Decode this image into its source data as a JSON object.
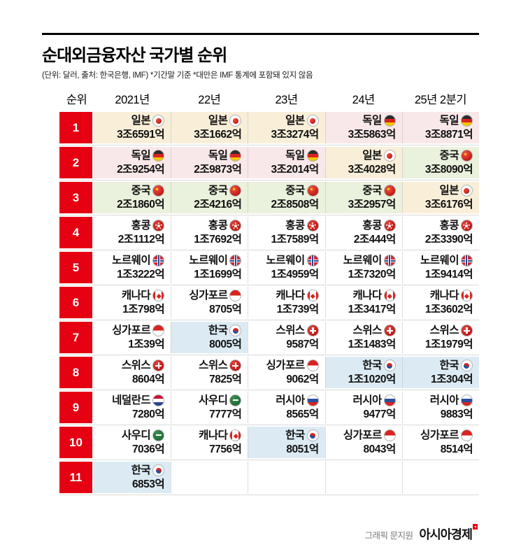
{
  "title": "순대외금융자산 국가별 순위",
  "subtitle": "(단위: 달러, 출처: 한국은행, IMF)  *기간말 기준  *대만은 IMF 통계에 포함돼 있지 않음",
  "footer": {
    "credit": "그래픽 문지원",
    "brand": "아시아경제"
  },
  "colors": {
    "rank_bg": "#e50012",
    "hl_jp": "#f9efd9",
    "hl_de": "#f9e8e9",
    "hl_cn": "#eaf1dc",
    "hl_kr": "#dcebf3"
  },
  "chart_data": {
    "type": "table",
    "title": "순대외금융자산 국가별 순위",
    "unit": "달러",
    "columns": [
      "순위",
      "2021년",
      "22년",
      "23년",
      "24년",
      "25년 2분기"
    ],
    "rows": [
      {
        "rank": "1",
        "cells": [
          {
            "country": "일본",
            "flag": "jp",
            "value": "3조6591억",
            "highlight": "jp"
          },
          {
            "country": "일본",
            "flag": "jp",
            "value": "3조1662억",
            "highlight": "jp"
          },
          {
            "country": "일본",
            "flag": "jp",
            "value": "3조3274억",
            "highlight": "jp"
          },
          {
            "country": "독일",
            "flag": "de",
            "value": "3조5863억",
            "highlight": "de"
          },
          {
            "country": "독일",
            "flag": "de",
            "value": "3조8871억",
            "highlight": "de"
          }
        ]
      },
      {
        "rank": "2",
        "cells": [
          {
            "country": "독일",
            "flag": "de",
            "value": "2조9254억",
            "highlight": "de"
          },
          {
            "country": "독일",
            "flag": "de",
            "value": "2조9873억",
            "highlight": "de"
          },
          {
            "country": "독일",
            "flag": "de",
            "value": "3조2014억",
            "highlight": "de"
          },
          {
            "country": "일본",
            "flag": "jp",
            "value": "3조4028억",
            "highlight": "jp"
          },
          {
            "country": "중국",
            "flag": "cn",
            "value": "3조8090억",
            "highlight": "cn"
          }
        ]
      },
      {
        "rank": "3",
        "cells": [
          {
            "country": "중국",
            "flag": "cn",
            "value": "2조1860억",
            "highlight": "cn"
          },
          {
            "country": "중국",
            "flag": "cn",
            "value": "2조4216억",
            "highlight": "cn"
          },
          {
            "country": "중국",
            "flag": "cn",
            "value": "2조8508억",
            "highlight": "cn"
          },
          {
            "country": "중국",
            "flag": "cn",
            "value": "3조2957억",
            "highlight": "cn"
          },
          {
            "country": "일본",
            "flag": "jp",
            "value": "3조6176억",
            "highlight": "jp"
          }
        ]
      },
      {
        "rank": "4",
        "cells": [
          {
            "country": "홍콩",
            "flag": "hk",
            "value": "2조1112억",
            "highlight": null
          },
          {
            "country": "홍콩",
            "flag": "hk",
            "value": "1조7692억",
            "highlight": null
          },
          {
            "country": "홍콩",
            "flag": "hk",
            "value": "1조7589억",
            "highlight": null
          },
          {
            "country": "홍콩",
            "flag": "hk",
            "value": "2조444억",
            "highlight": null
          },
          {
            "country": "홍콩",
            "flag": "hk",
            "value": "2조3390억",
            "highlight": null
          }
        ]
      },
      {
        "rank": "5",
        "cells": [
          {
            "country": "노르웨이",
            "flag": "no",
            "value": "1조3222억",
            "highlight": null
          },
          {
            "country": "노르웨이",
            "flag": "no",
            "value": "1조1699억",
            "highlight": null
          },
          {
            "country": "노르웨이",
            "flag": "no",
            "value": "1조4959억",
            "highlight": null
          },
          {
            "country": "노르웨이",
            "flag": "no",
            "value": "1조7320억",
            "highlight": null
          },
          {
            "country": "노르웨이",
            "flag": "no",
            "value": "1조9414억",
            "highlight": null
          }
        ]
      },
      {
        "rank": "6",
        "cells": [
          {
            "country": "캐나다",
            "flag": "ca",
            "value": "1조798억",
            "highlight": null
          },
          {
            "country": "싱가포르",
            "flag": "sg",
            "value": "8705억",
            "highlight": null
          },
          {
            "country": "캐나다",
            "flag": "ca",
            "value": "1조739억",
            "highlight": null
          },
          {
            "country": "캐나다",
            "flag": "ca",
            "value": "1조3417억",
            "highlight": null
          },
          {
            "country": "캐나다",
            "flag": "ca",
            "value": "1조3602억",
            "highlight": null
          }
        ]
      },
      {
        "rank": "7",
        "cells": [
          {
            "country": "싱가포르",
            "flag": "sg",
            "value": "1조39억",
            "highlight": null
          },
          {
            "country": "한국",
            "flag": "kr",
            "value": "8005억",
            "highlight": "kr"
          },
          {
            "country": "스위스",
            "flag": "ch",
            "value": "9587억",
            "highlight": null
          },
          {
            "country": "스위스",
            "flag": "ch",
            "value": "1조1483억",
            "highlight": null
          },
          {
            "country": "스위스",
            "flag": "ch",
            "value": "1조1979억",
            "highlight": null
          }
        ]
      },
      {
        "rank": "8",
        "cells": [
          {
            "country": "스위스",
            "flag": "ch",
            "value": "8604억",
            "highlight": null
          },
          {
            "country": "스위스",
            "flag": "ch",
            "value": "7825억",
            "highlight": null
          },
          {
            "country": "싱가포르",
            "flag": "sg",
            "value": "9062억",
            "highlight": null
          },
          {
            "country": "한국",
            "flag": "kr",
            "value": "1조1020억",
            "highlight": "kr"
          },
          {
            "country": "한국",
            "flag": "kr",
            "value": "1조304억",
            "highlight": "kr"
          }
        ]
      },
      {
        "rank": "9",
        "cells": [
          {
            "country": "네덜란드",
            "flag": "nl",
            "value": "7280억",
            "highlight": null
          },
          {
            "country": "사우디",
            "flag": "sa",
            "value": "7777억",
            "highlight": null
          },
          {
            "country": "러시아",
            "flag": "ru",
            "value": "8565억",
            "highlight": null
          },
          {
            "country": "러시아",
            "flag": "ru",
            "value": "9477억",
            "highlight": null
          },
          {
            "country": "러시아",
            "flag": "ru",
            "value": "9883억",
            "highlight": null
          }
        ]
      },
      {
        "rank": "10",
        "cells": [
          {
            "country": "사우디",
            "flag": "sa",
            "value": "7036억",
            "highlight": null
          },
          {
            "country": "캐나다",
            "flag": "ca",
            "value": "7756억",
            "highlight": null
          },
          {
            "country": "한국",
            "flag": "kr",
            "value": "8051억",
            "highlight": "kr"
          },
          {
            "country": "싱가포르",
            "flag": "sg",
            "value": "8043억",
            "highlight": null
          },
          {
            "country": "싱가포르",
            "flag": "sg",
            "value": "8514억",
            "highlight": null
          }
        ]
      },
      {
        "rank": "11",
        "cells": [
          {
            "country": "한국",
            "flag": "kr",
            "value": "6853억",
            "highlight": "kr"
          },
          null,
          null,
          null,
          null
        ]
      }
    ]
  }
}
